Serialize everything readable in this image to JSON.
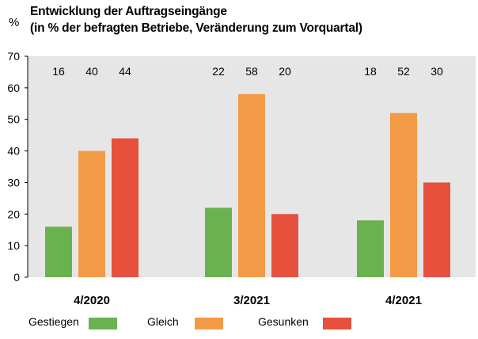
{
  "chart_data": {
    "type": "bar",
    "title": "Entwicklung der Auftragseingänge",
    "subtitle": "(in % der befragten Betriebe, Veränderung zum Vorquartal)",
    "ylabel": "%",
    "xlabel": "",
    "ylim": [
      0,
      70
    ],
    "yticks": [
      "0",
      "10",
      "20",
      "30",
      "40",
      "50",
      "60",
      "70"
    ],
    "grid": false,
    "legend_position": "bottom",
    "background": "#e6e6e6",
    "categories": [
      "4/2020",
      "3/2021",
      "4/2021"
    ],
    "series": [
      {
        "name": "Gestiegen",
        "color": "#6ab150",
        "values": [
          16,
          22,
          18
        ],
        "labels": [
          "16",
          "22",
          "18"
        ]
      },
      {
        "name": "Gleich",
        "color": "#f39a47",
        "values": [
          40,
          58,
          52
        ],
        "labels": [
          "40",
          "58",
          "52"
        ]
      },
      {
        "name": "Gesunken",
        "color": "#e6503d",
        "values": [
          44,
          20,
          30
        ],
        "labels": [
          "44",
          "20",
          "30"
        ]
      }
    ]
  }
}
